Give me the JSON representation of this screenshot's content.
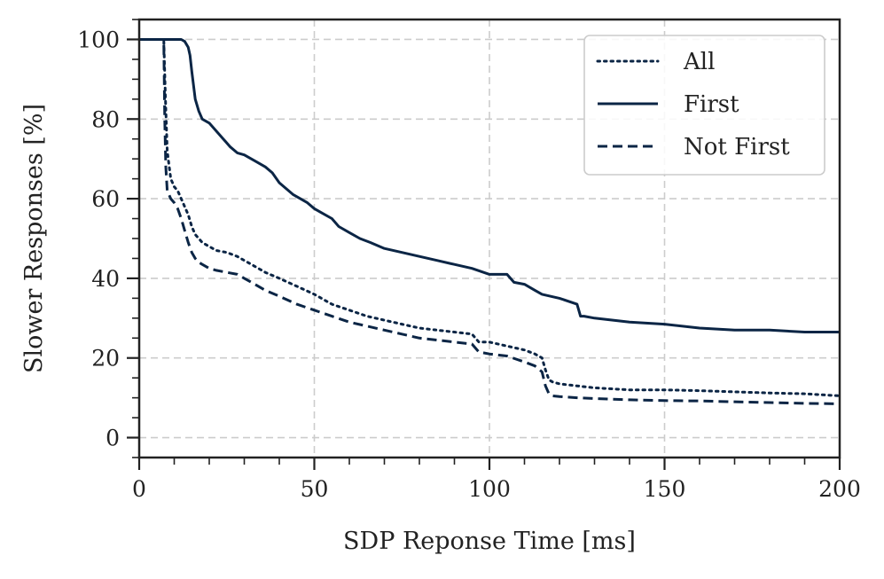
{
  "chart_data": {
    "type": "line",
    "title": "",
    "xlabel": "SDP Reponse Time [ms]",
    "ylabel": "Slower Responses [%]",
    "xlim": [
      0,
      200
    ],
    "ylim": [
      -5,
      105
    ],
    "xticks": [
      0,
      50,
      100,
      150,
      200
    ],
    "xtick_labels": [
      "0",
      "50",
      "100",
      "150",
      "200"
    ],
    "yticks": [
      0,
      20,
      40,
      60,
      80,
      100
    ],
    "ytick_labels": [
      "0",
      "20",
      "40",
      "60",
      "80",
      "100"
    ],
    "grid": true,
    "legend_position": "top-right",
    "line_color": "#0b2545",
    "series": [
      {
        "name": "All",
        "style": "dotted",
        "x": [
          0,
          7,
          7.5,
          8,
          9,
          10,
          11,
          12,
          13,
          14,
          15,
          16,
          17,
          18,
          20,
          22,
          25,
          28,
          30,
          33,
          36,
          40,
          45,
          50,
          55,
          60,
          65,
          70,
          75,
          80,
          85,
          90,
          95,
          97,
          100,
          105,
          110,
          113,
          115,
          116,
          117,
          118,
          120,
          125,
          130,
          140,
          150,
          160,
          170,
          180,
          190,
          200
        ],
        "y": [
          100,
          100,
          85,
          72,
          65,
          63,
          62,
          60,
          58,
          56,
          53,
          51,
          50,
          49,
          48,
          47,
          46.5,
          45.5,
          44.5,
          43,
          41.5,
          40,
          38,
          36,
          33.5,
          32,
          30.5,
          29.5,
          28.5,
          27.5,
          27,
          26.5,
          26,
          24,
          24,
          23,
          22,
          21,
          20,
          17,
          14.5,
          14,
          13.5,
          13,
          12.5,
          12,
          12,
          11.8,
          11.5,
          11.2,
          11,
          10.5
        ]
      },
      {
        "name": "First",
        "style": "solid",
        "x": [
          0,
          12,
          13,
          14,
          14.5,
          15,
          16,
          17,
          18,
          20,
          22,
          24,
          26,
          28,
          30,
          33,
          36,
          38,
          40,
          42,
          44,
          46,
          48,
          50,
          52,
          55,
          57,
          60,
          63,
          66,
          70,
          75,
          80,
          85,
          90,
          95,
          100,
          103,
          105,
          107,
          110,
          113,
          115,
          120,
          125,
          126,
          127,
          130,
          140,
          150,
          160,
          170,
          180,
          190,
          200
        ],
        "y": [
          100,
          100,
          99.5,
          98,
          96,
          92,
          85,
          82,
          80,
          79,
          77,
          75,
          73,
          71.5,
          71,
          69.5,
          68,
          66.5,
          64,
          62.5,
          61,
          60,
          59,
          57.5,
          56.5,
          55,
          53,
          51.5,
          50,
          49,
          47.5,
          46.5,
          45.5,
          44.5,
          43.5,
          42.5,
          41,
          41,
          41,
          39,
          38.5,
          37,
          36,
          35,
          33.5,
          30.5,
          30.5,
          30,
          29,
          28.5,
          27.5,
          27,
          27,
          26.5,
          26.5
        ]
      },
      {
        "name": "Not First",
        "style": "dashed",
        "x": [
          0,
          7,
          7.3,
          7.6,
          8,
          9,
          10,
          11,
          12,
          13,
          14,
          15,
          16,
          17,
          18,
          20,
          22,
          25,
          28,
          30,
          33,
          36,
          40,
          45,
          50,
          55,
          60,
          65,
          70,
          75,
          80,
          85,
          90,
          95,
          97,
          100,
          105,
          110,
          113,
          115,
          116,
          117,
          118,
          120,
          125,
          130,
          140,
          150,
          160,
          170,
          180,
          190,
          200
        ],
        "y": [
          100,
          100,
          80,
          68,
          62,
          60,
          59,
          57.5,
          55,
          52,
          49,
          46.5,
          45,
          44,
          43.5,
          42.5,
          42,
          41.5,
          41,
          40,
          38.5,
          37,
          35.5,
          33.5,
          32,
          30.5,
          29,
          28,
          27,
          26,
          25,
          24.5,
          24,
          23.5,
          21.5,
          21,
          20.5,
          19,
          18,
          16.5,
          13,
          11,
          10.5,
          10.3,
          10,
          9.8,
          9.5,
          9.3,
          9.2,
          9,
          8.8,
          8.6,
          8.5
        ]
      }
    ]
  }
}
